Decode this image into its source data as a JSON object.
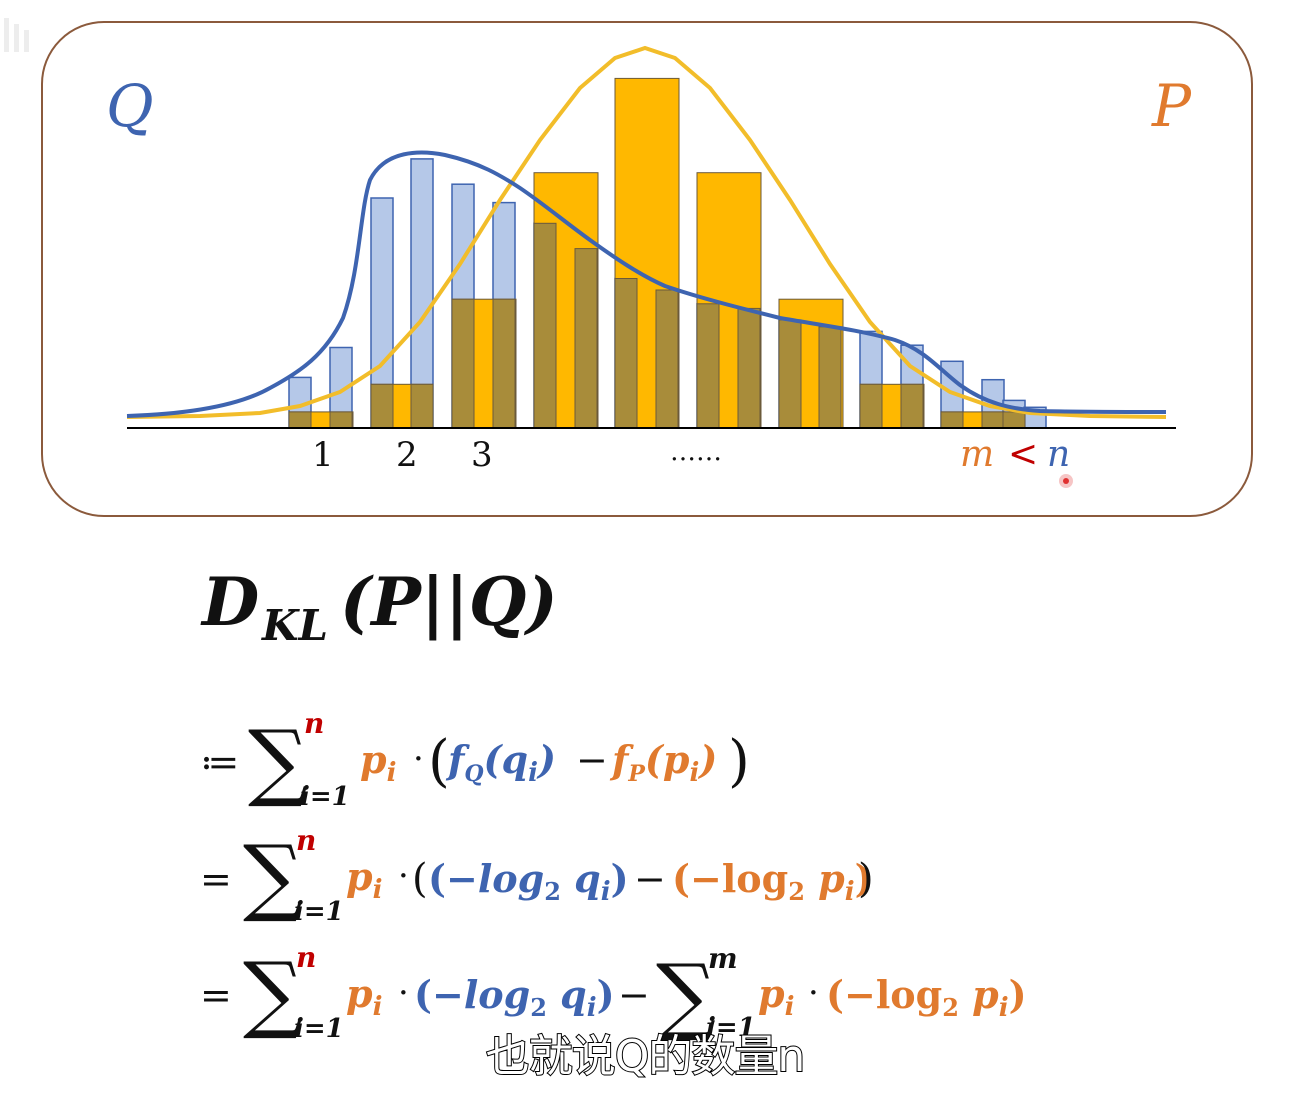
{
  "colors": {
    "P": "#E07A2E",
    "Q": "#3E64B0",
    "P_bar": "#FFB800",
    "Q_bar": "#A8BEE4",
    "overlap": "#A88C3A",
    "frame": "#8B5A3C",
    "red_index": "#C00000"
  },
  "labels": {
    "Q": "Q",
    "P": "P",
    "tick1": "1",
    "tick2": "2",
    "tick3": "3",
    "dots": "……",
    "m": "m",
    "lt": "<",
    "n": "n"
  },
  "bars": {
    "Q": [
      0.22,
      0.35,
      1.0,
      1.17,
      1.06,
      0.98,
      0.89,
      0.78,
      0.65,
      0.6,
      0.54,
      0.52,
      0.47,
      0.44,
      0.42,
      0.36,
      0.29,
      0.21,
      0.12,
      0.09
    ],
    "P_groups": [
      0.07,
      0.19,
      0.56,
      1.11,
      1.52,
      1.11,
      0.56,
      0.19,
      0.07
    ]
  },
  "formula": {
    "title_D": "D",
    "title_sub": "KL",
    "title_rest": "(P||Q)",
    "line1_op": "≔",
    "line2_op": "=",
    "line3_op": "=",
    "sum_upper_n": "n",
    "sum_upper_m": "m",
    "sum_lower": "i=1",
    "p_i": "p",
    "i": "i",
    "dot": "·",
    "fQ": "f",
    "Q_sub": "Q",
    "q": "q",
    "minus": "−",
    "fP": "f",
    "P_sub": "P",
    "neg_log_q": "−log",
    "neg_log_p": "−log",
    "two": "2"
  },
  "subtitle": "也就说Q的数量n"
}
